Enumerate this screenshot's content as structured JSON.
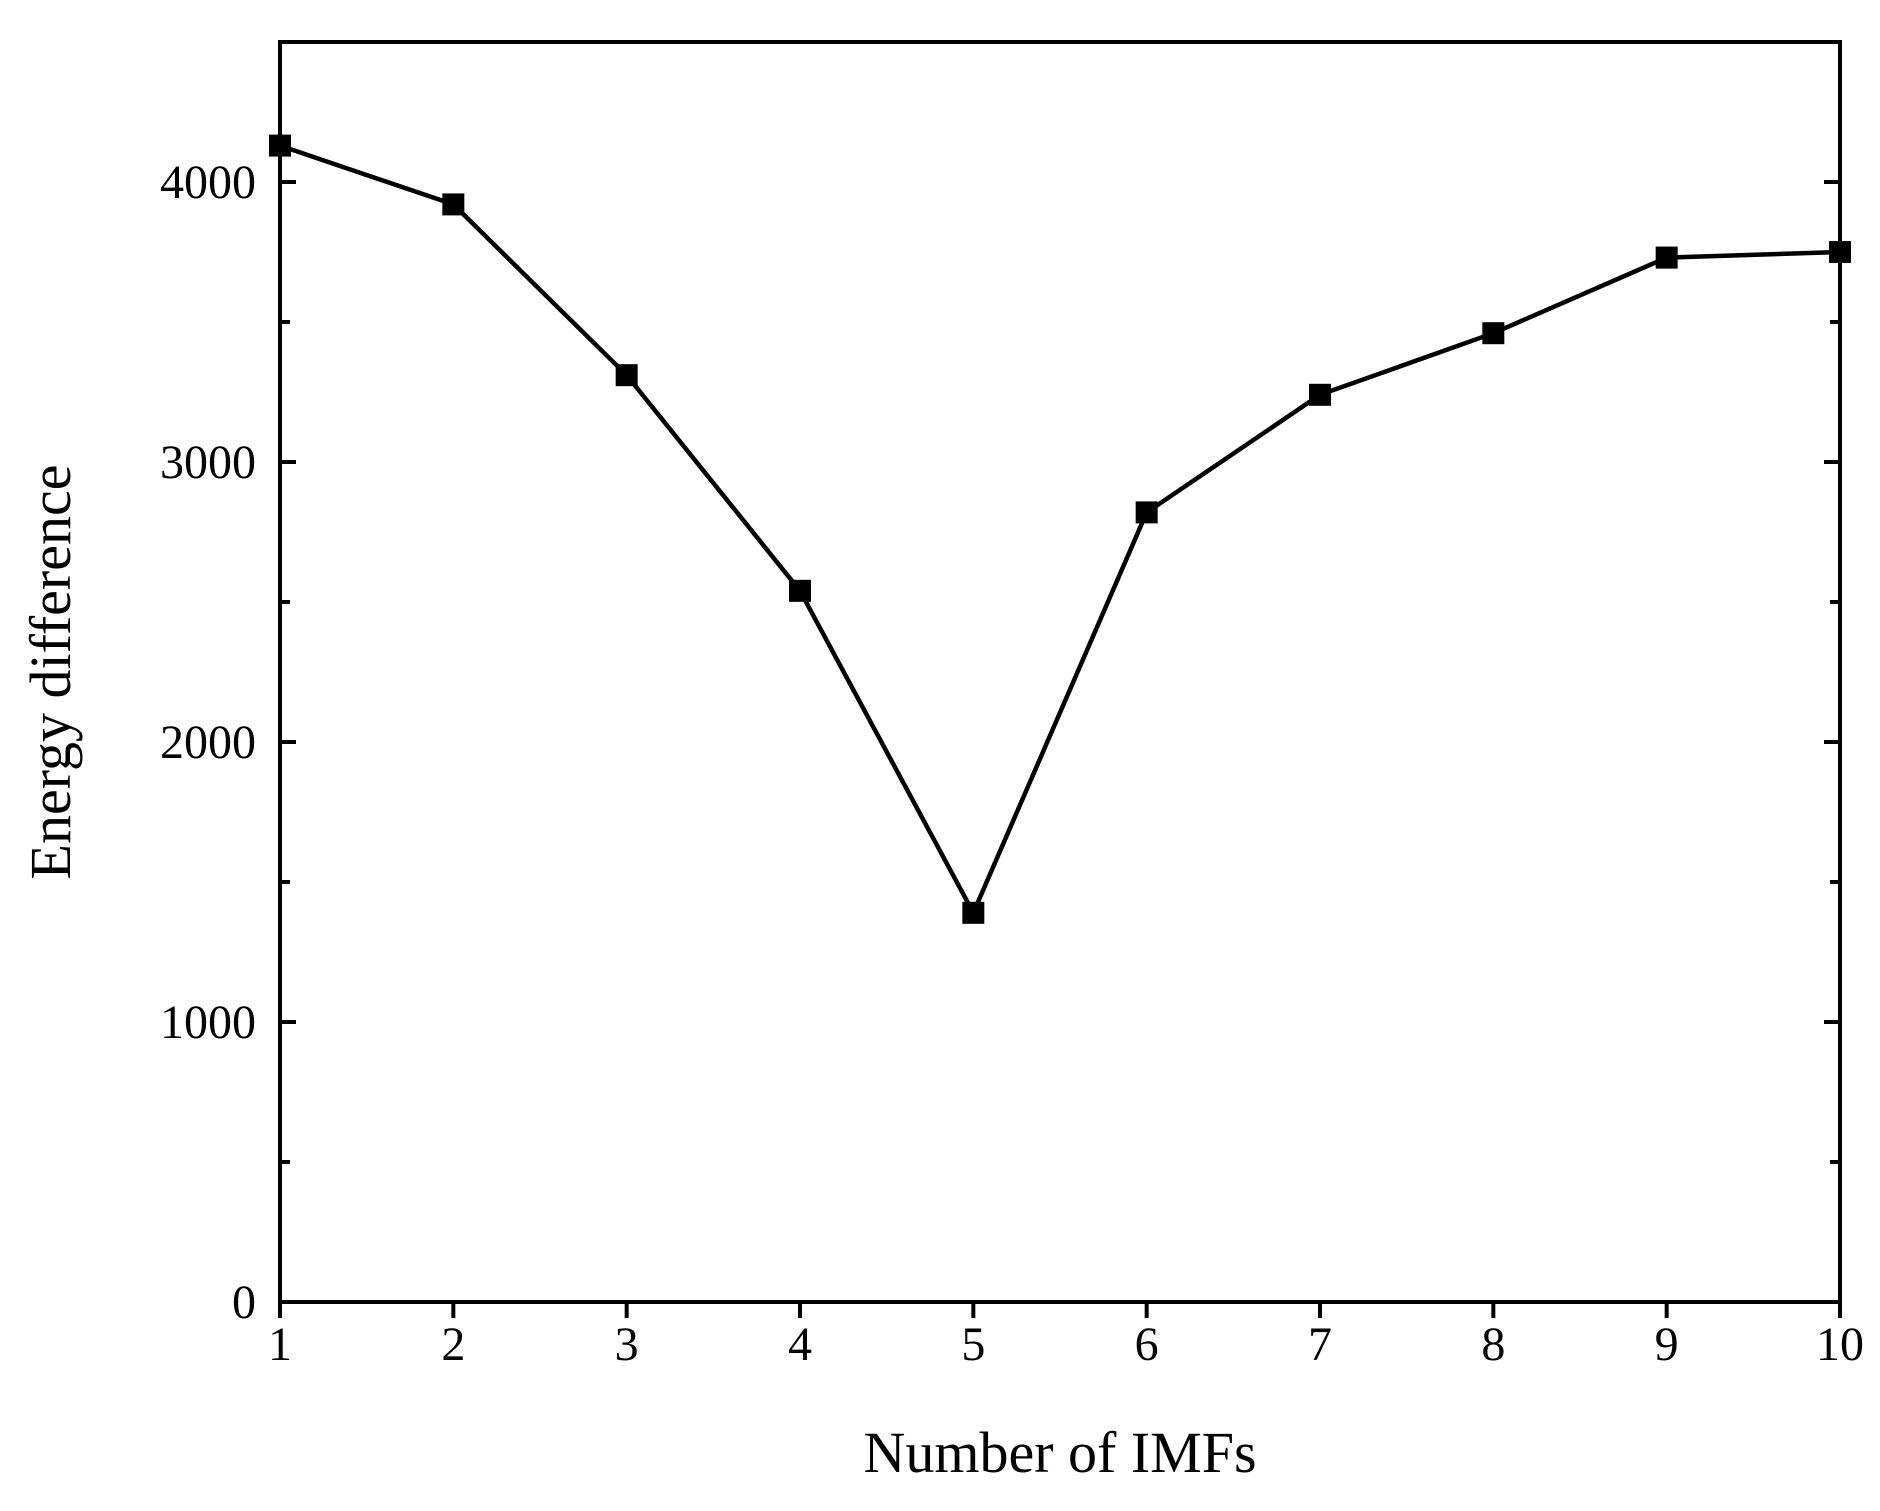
{
  "chart_data": {
    "type": "line",
    "title": "",
    "xlabel": "Number of IMFs",
    "ylabel": "Energy difference",
    "x": [
      1,
      2,
      3,
      4,
      5,
      6,
      7,
      8,
      9,
      10
    ],
    "series": [
      {
        "values": [
          4130,
          3920,
          3310,
          2540,
          1390,
          2820,
          3240,
          3460,
          3730,
          3750
        ]
      }
    ],
    "xlim": [
      1,
      10
    ],
    "ylim": [
      0,
      4500
    ],
    "x_ticks": [
      "1",
      "2",
      "3",
      "4",
      "5",
      "6",
      "7",
      "8",
      "9",
      "10"
    ],
    "y_ticks": [
      {
        "value": 0,
        "label": "0"
      },
      {
        "value": 1000,
        "label": "1000"
      },
      {
        "value": 2000,
        "label": "2000"
      },
      {
        "value": 3000,
        "label": "3000"
      },
      {
        "value": 4000,
        "label": "4000"
      }
    ],
    "y_minor_ticks": [
      500,
      1500,
      2500,
      3500
    ],
    "marker": "square",
    "line_color": "#000000",
    "grid": false,
    "legend": "none"
  }
}
